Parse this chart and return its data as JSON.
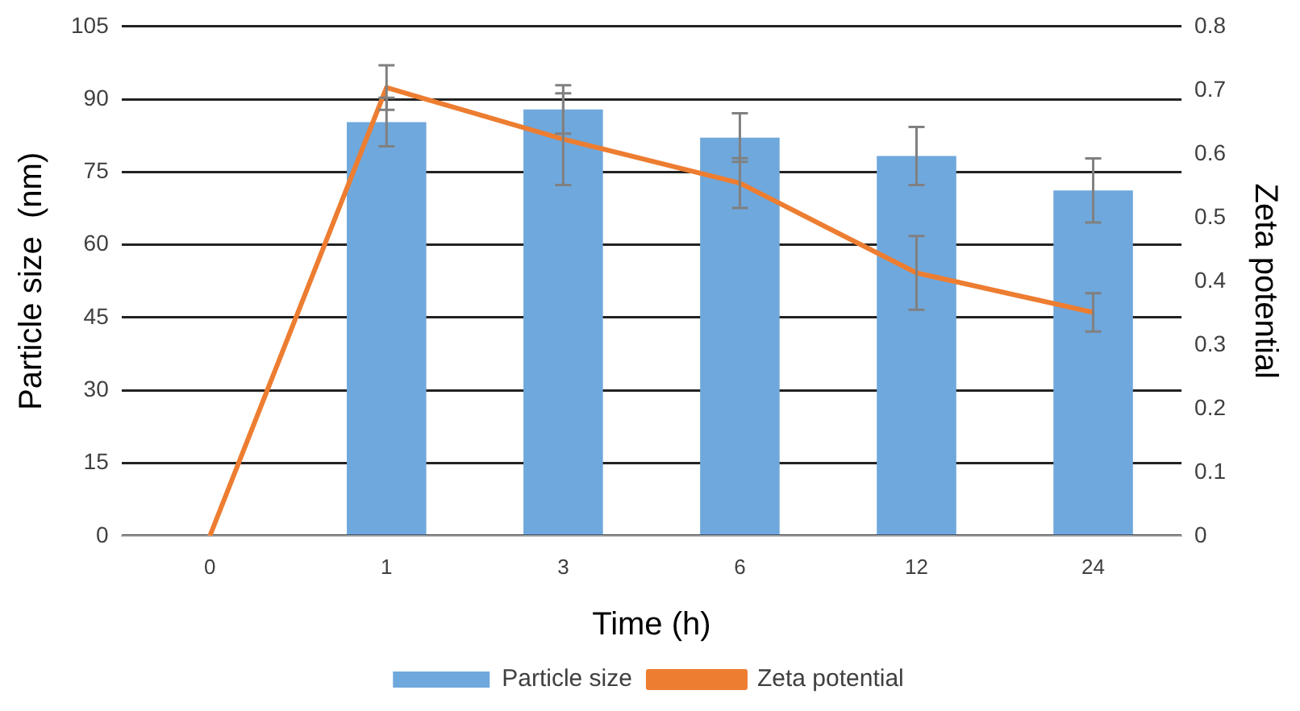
{
  "chart_data": {
    "type": "bar",
    "xlabel": "Time (h)",
    "ylabel": "Particle size  (nm)",
    "y2label": "Zeta potential",
    "categories": [
      "0",
      "1",
      "3",
      "6",
      "12",
      "24"
    ],
    "series": [
      {
        "name": "Particle size",
        "color": "#6fa8dc",
        "values": [
          0,
          85.3,
          87.9,
          82.1,
          78.3,
          71.2
        ],
        "errors": [
          null,
          5,
          5,
          5,
          6,
          6.6
        ]
      },
      {
        "name": "Zeta potential",
        "type": "line",
        "axis": "y2",
        "color": "#ed7d31",
        "values": [
          0,
          0.704,
          0.623,
          0.554,
          0.413,
          0.351
        ],
        "errors": [
          null,
          0.035,
          0.072,
          0.039,
          0.058,
          0.03
        ]
      }
    ],
    "ylim": [
      0,
      105
    ],
    "yticks": [
      0,
      15,
      30,
      45,
      60,
      75,
      90,
      105
    ],
    "y2lim": [
      0,
      0.8
    ],
    "y2ticks": [
      0,
      0.1,
      0.2,
      0.3,
      0.4,
      0.5,
      0.6,
      0.7,
      0.8
    ],
    "grid": "y",
    "legend": "bottom",
    "marker": "none",
    "line_style": "solid"
  }
}
